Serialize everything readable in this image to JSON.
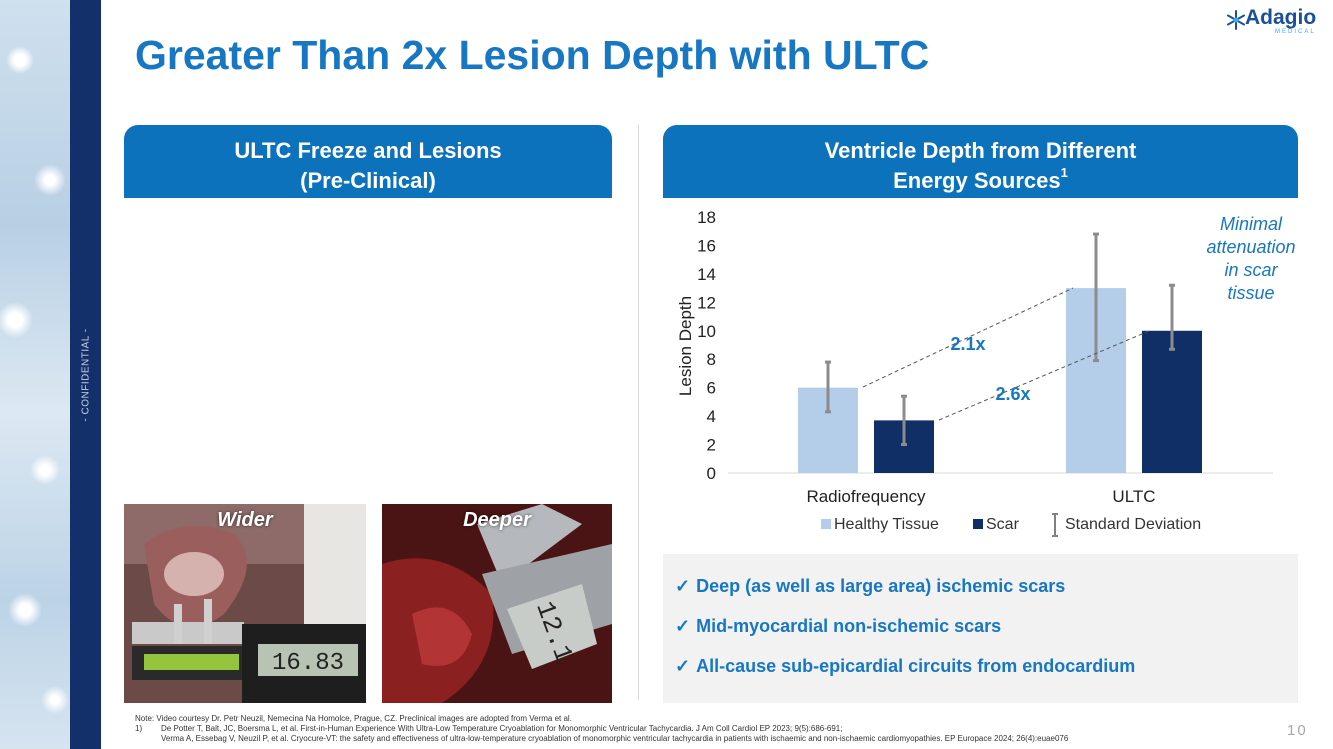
{
  "slide": {
    "title": "Greater Than 2x Lesion Depth with ULTC",
    "confidential": "- CONFIDENTIAL -",
    "page_number": "10"
  },
  "logo": {
    "word": "Adagio",
    "sub": "MEDICAL",
    "mark": "snowflake-icon"
  },
  "left_panel": {
    "header_line1": "ULTC Freeze and Lesions",
    "header_line2": "(Pre-Clinical)",
    "photos": [
      {
        "label": "Wider"
      },
      {
        "label": "Deeper"
      }
    ]
  },
  "right_panel": {
    "header_line1": "Ventricle Depth from Different",
    "header_line2": "Energy Sources",
    "header_sup": "1"
  },
  "chart_data": {
    "type": "bar",
    "categories": [
      "Radiofrequency",
      "ULTC"
    ],
    "series": [
      {
        "name": "Healthy Tissue",
        "values": [
          6,
          13
        ],
        "error_low": [
          4.3,
          7.9
        ],
        "error_high": [
          7.8,
          16.8
        ],
        "color": "#b4cde9"
      },
      {
        "name": "Scar",
        "values": [
          3.7,
          10
        ],
        "error_low": [
          2.0,
          8.7
        ],
        "error_high": [
          5.4,
          13.2
        ],
        "color": "#0f2f66"
      }
    ],
    "error_legend": "Standard Deviation",
    "ylabel": "Lesion Depth",
    "xlabel": "",
    "ylim": [
      0,
      18
    ],
    "yticks": [
      0,
      2,
      4,
      6,
      8,
      10,
      12,
      14,
      16,
      18
    ],
    "grid": false,
    "legend_position": "bottom",
    "annotations": [
      {
        "text": "2.1x",
        "color": "#1777c2"
      },
      {
        "text": "2.6x",
        "color": "#1777c2"
      },
      {
        "text_lines": [
          "Minimal",
          "attenuation",
          "in scar",
          "tissue"
        ],
        "color": "#1777c2"
      }
    ]
  },
  "bullets": [
    "Deep (as well as large area) ischemic scars",
    "Mid-myocardial non-ischemic scars",
    "All-cause sub-epicardial circuits from endocardium"
  ],
  "footnotes": {
    "note": "Note: Video courtesy Dr. Petr Neuzil, Nemecina Na Homolce, Prague, CZ. Preclinical images are adopted from Verma et al.",
    "ref1_num": "1)",
    "ref1": "De Potter T, Balt, JC, Boersma L, et al. First-in-Human Experience With Ultra-Low Temperature Cryoablation for Monomorphic Ventricular Tachycardia. J Am Coll Cardiol EP 2023; 9(5):686-691;",
    "ref2": "Verma A, Essebag V, Neuzil P, et al. Cryocure-VT: the safety and effectiveness of ultra-low-temperature cryoablation of monomorphic ventricular tachycardia in patients with ischaemic and non-ischaemic cardiomyopathies. EP Europace 2024; 26(4):euae076"
  }
}
